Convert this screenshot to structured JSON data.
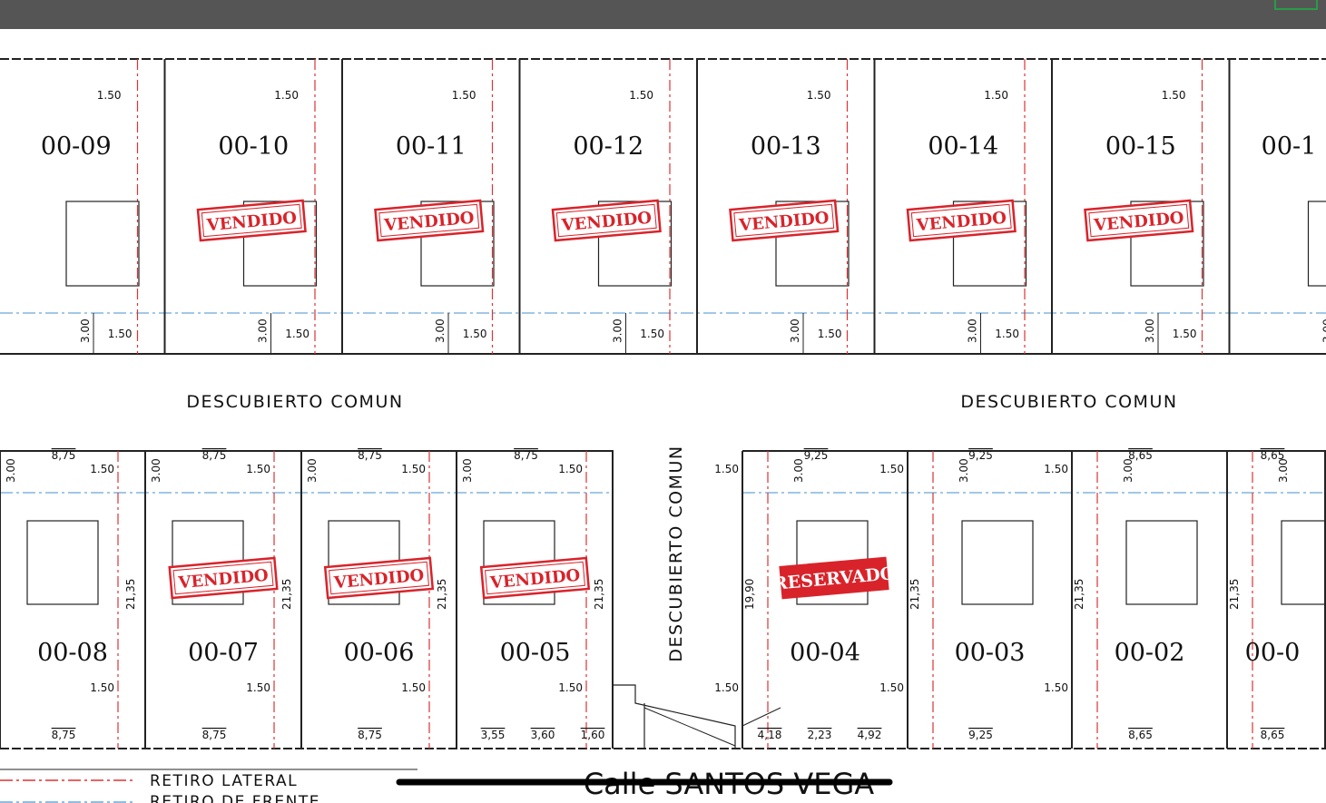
{
  "top_row": {
    "lots": [
      {
        "label": "00-09",
        "front": "1.50",
        "setback": "3.00",
        "side": "1.50"
      },
      {
        "label": "00-10",
        "status": "VENDIDO",
        "front": "1.50",
        "setback": "3.00",
        "side": "1.50"
      },
      {
        "label": "00-11",
        "status": "VENDIDO",
        "front": "1.50",
        "setback": "3.00",
        "side": "1.50"
      },
      {
        "label": "00-12",
        "status": "VENDIDO",
        "front": "1.50",
        "setback": "3.00",
        "side": "1.50"
      },
      {
        "label": "00-13",
        "status": "VENDIDO",
        "front": "1.50",
        "setback": "3.00",
        "side": "1.50"
      },
      {
        "label": "00-14",
        "status": "VENDIDO",
        "front": "1.50",
        "setback": "3.00",
        "side": "1.50"
      },
      {
        "label": "00-15",
        "status": "VENDIDO",
        "front": "1.50",
        "setback": "3.00",
        "side": "1.50"
      },
      {
        "label": "00-1",
        "setback": "3.00"
      }
    ]
  },
  "common_areas": [
    "DESCUBIERTO COMUN",
    "DESCUBIERTO COMUN",
    "DESCUBIERTO COMUN"
  ],
  "bottom_row": {
    "lots": [
      {
        "label": "00-08",
        "top_width": "8,75",
        "side_top": "1.50",
        "setback": "3.00",
        "depth": "21,35",
        "side_bottom": "1.50",
        "bottom_widths": [
          "8,75"
        ]
      },
      {
        "label": "00-07",
        "status": "VENDIDO",
        "top_width": "8,75",
        "side_top": "1.50",
        "setback": "3.00",
        "depth": "21,35",
        "side_bottom": "1.50",
        "bottom_widths": [
          "8,75"
        ]
      },
      {
        "label": "00-06",
        "status": "VENDIDO",
        "top_width": "8,75",
        "side_top": "1.50",
        "setback": "3.00",
        "depth": "21,35",
        "side_bottom": "1.50",
        "bottom_widths": [
          "8,75"
        ]
      },
      {
        "label": "00-05",
        "status": "VENDIDO",
        "top_width": "8,75",
        "side_top": "1.50",
        "setback": "3.00",
        "depth": "21,35",
        "side_bottom": "1.50",
        "bottom_widths": [
          "3,55",
          "3,60",
          "1,60"
        ]
      },
      {
        "label": "00-04",
        "status": "RESERVADO",
        "top_width": "9,25",
        "side_top": "1.50",
        "setback": "3.00",
        "depth": "19,90",
        "side_bottom": "1.50",
        "bottom_widths": [
          "4,18",
          "2,23",
          "4,92"
        ]
      },
      {
        "label": "00-03",
        "top_width": "9,25",
        "side_top": "1.50",
        "setback": "3.00",
        "depth": "21,35",
        "side_bottom": "1.50",
        "bottom_widths": [
          "9,25"
        ]
      },
      {
        "label": "00-02",
        "top_width": "8,65",
        "side_top": "1.50",
        "setback": "3.00",
        "depth": "21,35",
        "side_bottom": "1.50",
        "bottom_widths": [
          "8,65"
        ]
      },
      {
        "label": "00-0",
        "top_width": "8,65",
        "setback": "3.00",
        "depth": "21,35",
        "bottom_widths": [
          "8,65"
        ]
      }
    ]
  },
  "legend": [
    "RETIRO LATERAL",
    "RETIRO DE FRENTE"
  ],
  "street": "Calle SANTOS VEGA"
}
